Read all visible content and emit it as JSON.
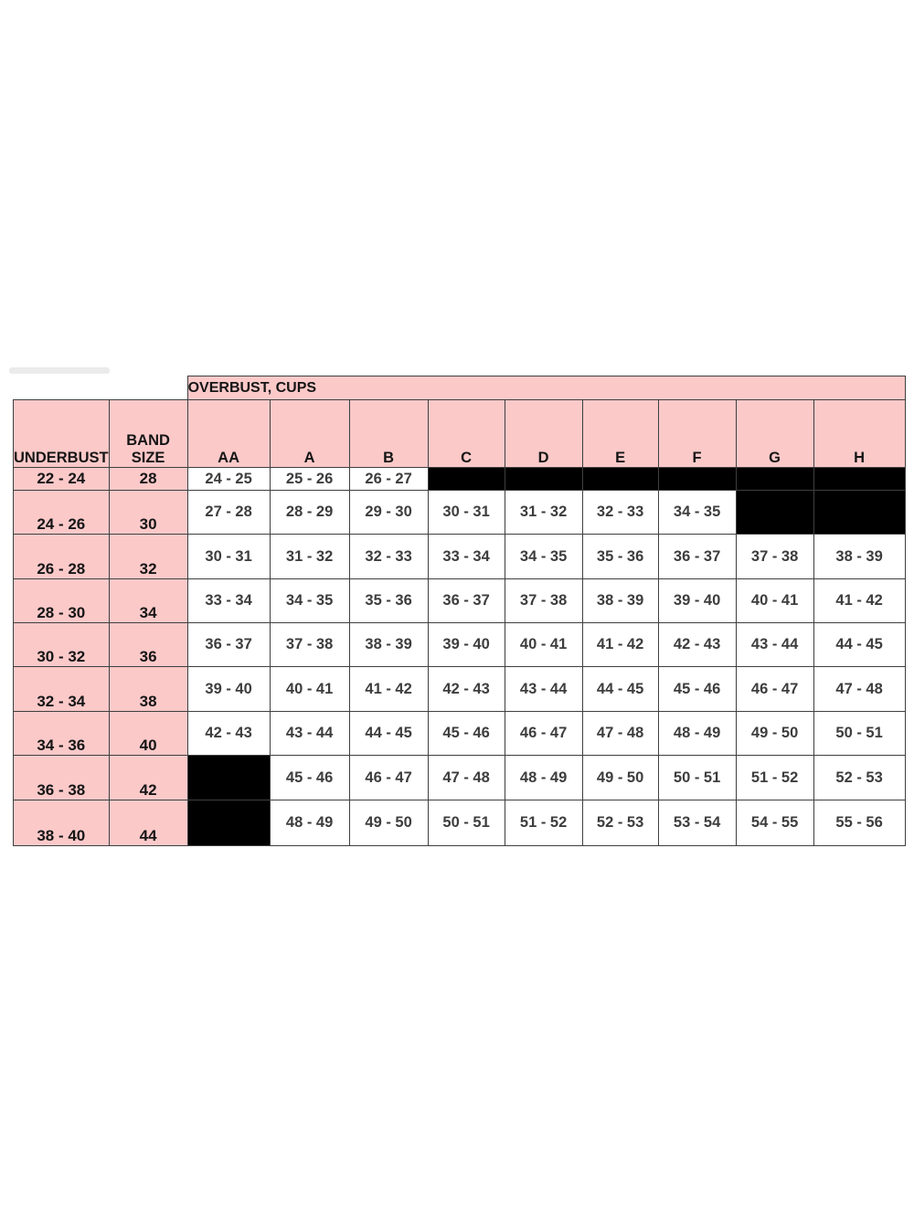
{
  "page": {
    "background": "#ffffff"
  },
  "colors": {
    "header_pink": "#fcc9c9",
    "blackout": "#000000",
    "grid_line": "#3f3f3f",
    "value_text": "#3d3d3d",
    "label_text": "#151515"
  },
  "chart_data": {
    "type": "table",
    "title": "OVERBUST, CUPS",
    "columns": [
      "UNDERBUST",
      "BAND SIZE",
      "AA",
      "A",
      "B",
      "C",
      "D",
      "E",
      "F",
      "G",
      "H"
    ],
    "rows": [
      [
        "22 - 24",
        "28",
        "24 - 25",
        "25 - 26",
        "26 - 27",
        null,
        null,
        null,
        null,
        null,
        null
      ],
      [
        "24 - 26",
        "30",
        "27 - 28",
        "28 - 29",
        "29 - 30",
        "30 - 31",
        "31 - 32",
        "32 - 33",
        "34 - 35",
        null,
        null
      ],
      [
        "26 - 28",
        "32",
        "30 - 31",
        "31 - 32",
        "32 - 33",
        "33 - 34",
        "34 - 35",
        "35 - 36",
        "36 - 37",
        "37 - 38",
        "38 - 39"
      ],
      [
        "28 - 30",
        "34",
        "33 - 34",
        "34 - 35",
        "35 - 36",
        "36 - 37",
        "37 - 38",
        "38 - 39",
        "39 - 40",
        "40 - 41",
        "41 - 42"
      ],
      [
        "30 - 32",
        "36",
        "36 - 37",
        "37 - 38",
        "38 - 39",
        "39 - 40",
        "40 - 41",
        "41 - 42",
        "42 - 43",
        "43 - 44",
        "44 - 45"
      ],
      [
        "32 - 34",
        "38",
        "39 - 40",
        "40 - 41",
        "41 - 42",
        "42 - 43",
        "43 - 44",
        "44 - 45",
        "45 - 46",
        "46 - 47",
        "47 - 48"
      ],
      [
        "34 - 36",
        "40",
        "42 - 43",
        "43 - 44",
        "44 - 45",
        "45 - 46",
        "46 - 47",
        "47 - 48",
        "48 - 49",
        "49 - 50",
        "50 - 51"
      ],
      [
        "36 - 38",
        "42",
        null,
        "45 - 46",
        "46 - 47",
        "47 - 48",
        "48 - 49",
        "49 - 50",
        "50 - 51",
        "51 - 52",
        "52 - 53"
      ],
      [
        "38 - 40",
        "44",
        null,
        "48 - 49",
        "49 - 50",
        "50 - 51",
        "51 - 52",
        "52 - 53",
        "53 - 54",
        "54 - 55",
        "55 - 56"
      ]
    ]
  }
}
